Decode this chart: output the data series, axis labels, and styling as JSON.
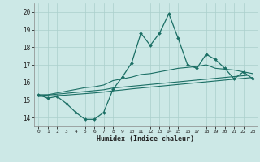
{
  "xlabel": "Humidex (Indice chaleur)",
  "x": [
    0,
    1,
    2,
    3,
    4,
    5,
    6,
    7,
    8,
    9,
    10,
    11,
    12,
    13,
    14,
    15,
    16,
    17,
    18,
    19,
    20,
    21,
    22,
    23
  ],
  "y_main": [
    15.3,
    15.1,
    15.2,
    14.8,
    14.3,
    13.9,
    13.9,
    14.3,
    15.6,
    16.3,
    17.1,
    18.8,
    18.1,
    18.8,
    19.9,
    18.5,
    17.0,
    16.8,
    17.6,
    17.3,
    16.8,
    16.2,
    16.6,
    16.2
  ],
  "y_upper": [
    15.3,
    15.3,
    15.4,
    15.5,
    15.6,
    15.7,
    15.75,
    15.85,
    16.1,
    16.2,
    16.3,
    16.45,
    16.5,
    16.6,
    16.7,
    16.8,
    16.85,
    16.9,
    17.0,
    16.8,
    16.75,
    16.7,
    16.6,
    16.5
  ],
  "y_mid": [
    15.25,
    15.28,
    15.33,
    15.38,
    15.43,
    15.48,
    15.53,
    15.58,
    15.68,
    15.73,
    15.78,
    15.83,
    15.88,
    15.93,
    15.98,
    16.03,
    16.08,
    16.13,
    16.18,
    16.23,
    16.28,
    16.33,
    16.38,
    16.43
  ],
  "y_lower": [
    15.2,
    15.22,
    15.25,
    15.28,
    15.32,
    15.36,
    15.4,
    15.45,
    15.52,
    15.57,
    15.63,
    15.68,
    15.73,
    15.78,
    15.83,
    15.88,
    15.93,
    15.98,
    16.03,
    16.08,
    16.13,
    16.18,
    16.23,
    16.28
  ],
  "bg_color": "#cce8e6",
  "grid_color": "#aacfcc",
  "line_color": "#1a6e64",
  "xlim": [
    -0.5,
    23.5
  ],
  "ylim": [
    13.5,
    20.5
  ],
  "yticks": [
    14,
    15,
    16,
    17,
    18,
    19,
    20
  ],
  "xticks": [
    0,
    1,
    2,
    3,
    4,
    5,
    6,
    7,
    8,
    9,
    10,
    11,
    12,
    13,
    14,
    15,
    16,
    17,
    18,
    19,
    20,
    21,
    22,
    23
  ]
}
